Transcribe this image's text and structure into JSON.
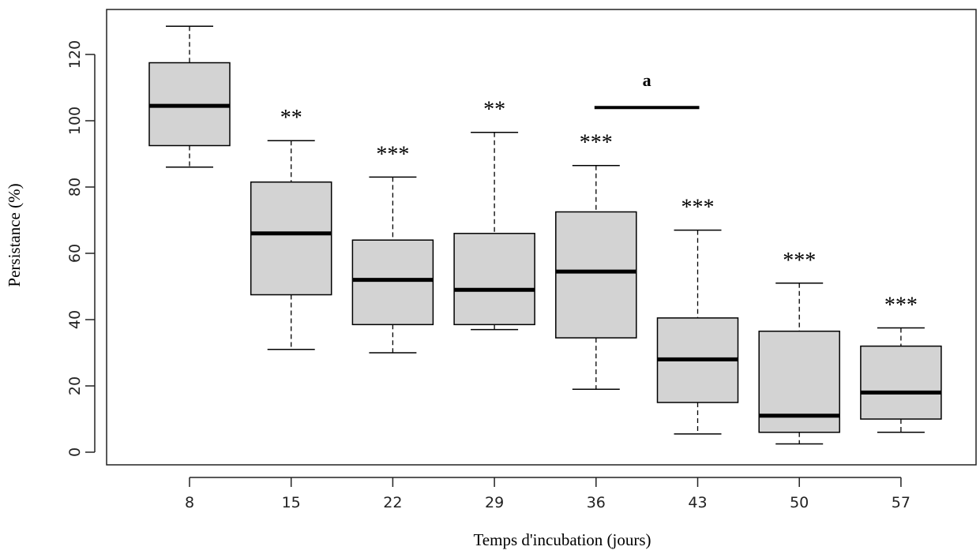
{
  "chart_data": {
    "type": "box",
    "xlabel": "Temps d'incubation (jours)",
    "ylabel": "Persistance (%)",
    "categories": [
      "8",
      "15",
      "22",
      "29",
      "36",
      "43",
      "50",
      "57"
    ],
    "ylim": [
      -2,
      135
    ],
    "yticks": [
      0,
      20,
      40,
      60,
      80,
      100,
      120
    ],
    "grid": false,
    "box_fill": "#d3d3d3",
    "boxes": [
      {
        "category": "8",
        "min": 86,
        "q1": 92.5,
        "median": 104.5,
        "q3": 117.5,
        "max": 128.5,
        "significance": ""
      },
      {
        "category": "15",
        "min": 31,
        "q1": 47.5,
        "median": 66.0,
        "q3": 81.5,
        "max": 94.0,
        "significance": "**"
      },
      {
        "category": "22",
        "min": 30,
        "q1": 38.5,
        "median": 52.0,
        "q3": 64.0,
        "max": 83.0,
        "significance": "***"
      },
      {
        "category": "29",
        "min": 37,
        "q1": 38.5,
        "median": 49.0,
        "q3": 66.0,
        "max": 96.5,
        "significance": "**"
      },
      {
        "category": "36",
        "min": 19,
        "q1": 34.5,
        "median": 54.5,
        "q3": 72.5,
        "max": 86.5,
        "significance": "***"
      },
      {
        "category": "43",
        "min": 5.5,
        "q1": 15.0,
        "median": 28.0,
        "q3": 40.5,
        "max": 67.0,
        "significance": "***"
      },
      {
        "category": "50",
        "min": 2.5,
        "q1": 6.0,
        "median": 11.0,
        "q3": 36.5,
        "max": 51.0,
        "significance": "***"
      },
      {
        "category": "57",
        "min": 6.0,
        "q1": 10.0,
        "median": 18.0,
        "q3": 32.0,
        "max": 37.5,
        "significance": "***"
      }
    ],
    "bracket": {
      "from": "36",
      "to": "43",
      "y": 104,
      "label": "a"
    }
  }
}
